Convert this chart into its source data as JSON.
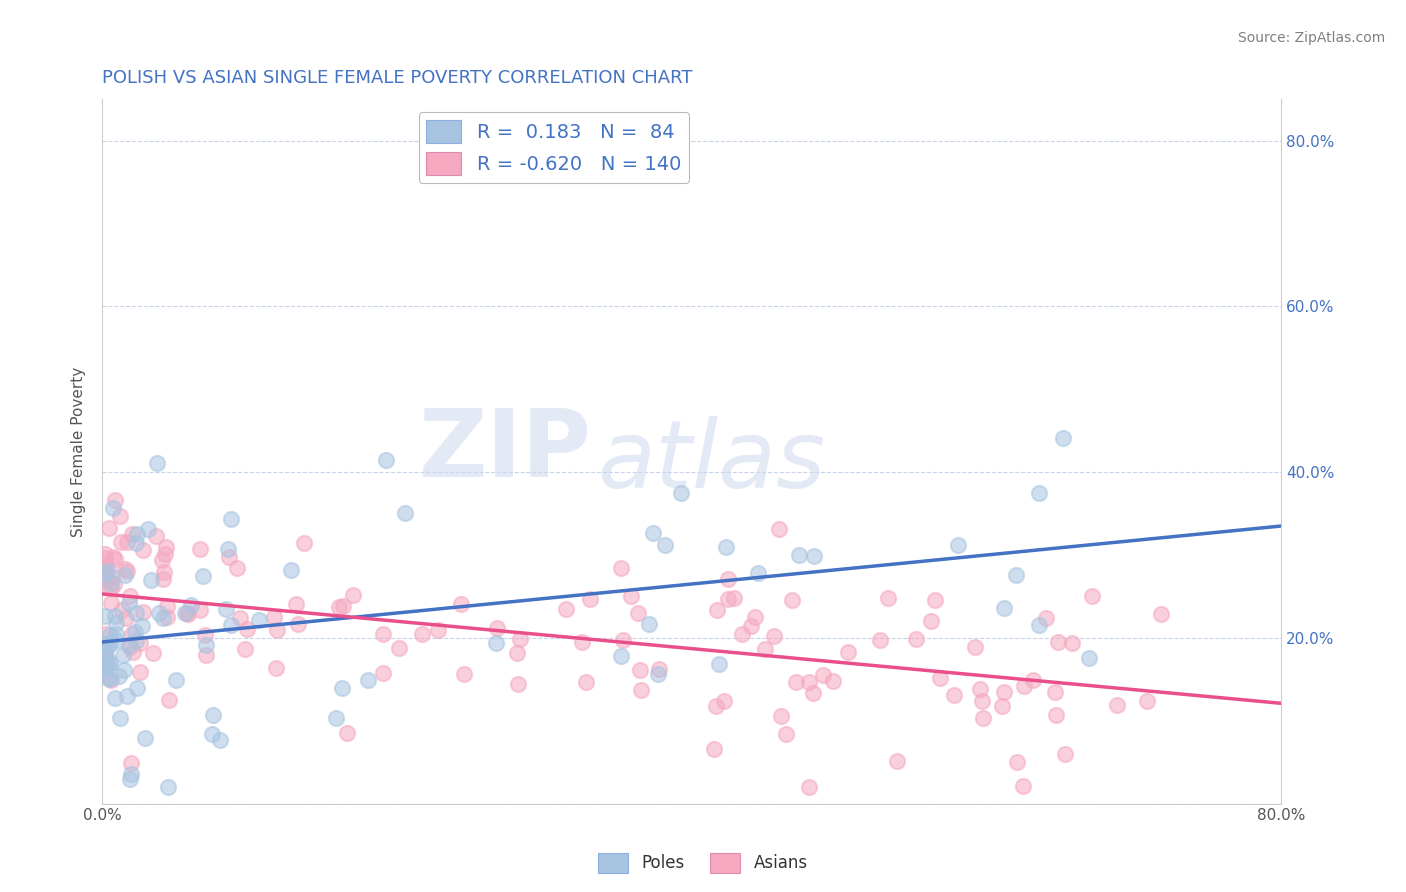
{
  "title": "POLISH VS ASIAN SINGLE FEMALE POVERTY CORRELATION CHART",
  "source": "Source: ZipAtlas.com",
  "ylabel": "Single Female Poverty",
  "xlim": [
    0.0,
    0.8
  ],
  "ylim": [
    0.0,
    0.85
  ],
  "blue_color": "#a8c4e0",
  "pink_color": "#f5a8c0",
  "blue_line_color": "#4472c4",
  "pink_line_color": "#e94f8a",
  "legend_blue_label": "R =  0.183   N =  84",
  "legend_pink_label": "R = -0.620   N = 140",
  "poles_label": "Poles",
  "asians_label": "Asians",
  "watermark_zip": "ZIP",
  "watermark_atlas": "atlas",
  "title_color": "#4472c4",
  "source_color": "#808080",
  "axis_color": "#cccccc",
  "grid_color": "#c8d4e8",
  "blue_N": 84,
  "pink_N": 140,
  "blue_intercept": 0.195,
  "blue_slope": 0.175,
  "pink_intercept": 0.253,
  "pink_slope": -0.165,
  "random_seed_blue": 42,
  "random_seed_pink": 99
}
